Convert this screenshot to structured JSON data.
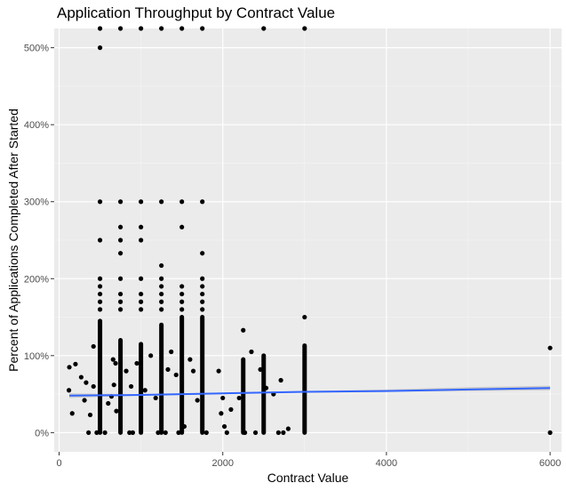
{
  "chart_data": {
    "type": "scatter",
    "title": "Application Throughput by Contract Value",
    "xlabel": "Contract Value",
    "ylabel": "Percent of Applications Completed After Started",
    "xlim": [
      -60,
      6140
    ],
    "ylim": [
      -0.25,
      5.25
    ],
    "x_ticks": [
      0,
      2000,
      4000,
      6000
    ],
    "x_tick_labels": [
      "0",
      "2000",
      "4000",
      "6000"
    ],
    "y_ticks": [
      0,
      1,
      2,
      3,
      4,
      5
    ],
    "y_tick_labels": [
      "0%",
      "100%",
      "200%",
      "300%",
      "400%",
      "500%"
    ],
    "grid": true,
    "background": "#ebebeb",
    "point_color": "#000000",
    "trend_color": "#3366ff",
    "band_color": "#bdbdbd",
    "columns": [
      {
        "x": 500,
        "from": 0,
        "to": 1.45
      },
      {
        "x": 750,
        "from": 0,
        "to": 1.2
      },
      {
        "x": 1000,
        "from": 0,
        "to": 1.15
      },
      {
        "x": 1250,
        "from": 0,
        "to": 1.4
      },
      {
        "x": 1500,
        "from": 0,
        "to": 1.5
      },
      {
        "x": 1750,
        "from": 0,
        "to": 1.5
      },
      {
        "x": 2250,
        "from": 0,
        "to": 0.95
      },
      {
        "x": 2500,
        "from": 0,
        "to": 1.0
      },
      {
        "x": 3000,
        "from": 0,
        "to": 1.13
      }
    ],
    "points": [
      [
        500,
        5.25
      ],
      [
        750,
        5.25
      ],
      [
        1000,
        5.25
      ],
      [
        1250,
        5.25
      ],
      [
        1500,
        5.25
      ],
      [
        1750,
        5.25
      ],
      [
        2500,
        5.25
      ],
      [
        3000,
        5.25
      ],
      [
        500,
        5.0
      ],
      [
        500,
        3.0
      ],
      [
        750,
        3.0
      ],
      [
        1000,
        3.0
      ],
      [
        1250,
        3.0
      ],
      [
        1500,
        3.0
      ],
      [
        1750,
        3.0
      ],
      [
        750,
        2.67
      ],
      [
        1000,
        2.67
      ],
      [
        1500,
        2.67
      ],
      [
        500,
        2.5
      ],
      [
        750,
        2.5
      ],
      [
        1000,
        2.5
      ],
      [
        750,
        2.33
      ],
      [
        1750,
        2.33
      ],
      [
        1250,
        2.17
      ],
      [
        500,
        2.0
      ],
      [
        750,
        2.0
      ],
      [
        1000,
        2.0
      ],
      [
        1250,
        2.0
      ],
      [
        1750,
        2.0
      ],
      [
        500,
        1.9
      ],
      [
        1250,
        1.9
      ],
      [
        1500,
        1.9
      ],
      [
        1750,
        1.9
      ],
      [
        500,
        1.8
      ],
      [
        750,
        1.8
      ],
      [
        1000,
        1.8
      ],
      [
        1250,
        1.8
      ],
      [
        1500,
        1.8
      ],
      [
        1750,
        1.8
      ],
      [
        500,
        1.7
      ],
      [
        750,
        1.7
      ],
      [
        1000,
        1.7
      ],
      [
        1250,
        1.7
      ],
      [
        1500,
        1.7
      ],
      [
        1750,
        1.7
      ],
      [
        500,
        1.6
      ],
      [
        750,
        1.6
      ],
      [
        1000,
        1.6
      ],
      [
        1250,
        1.6
      ],
      [
        1500,
        1.6
      ],
      [
        1750,
        1.6
      ],
      [
        2250,
        1.33
      ],
      [
        3000,
        1.5
      ],
      [
        125,
        0.85
      ],
      [
        200,
        0.89
      ],
      [
        160,
        0.25
      ],
      [
        120,
        0.55
      ],
      [
        270,
        0.72
      ],
      [
        310,
        0.42
      ],
      [
        330,
        0.65
      ],
      [
        360,
        0.0
      ],
      [
        380,
        0.23
      ],
      [
        420,
        1.12
      ],
      [
        420,
        0.6
      ],
      [
        460,
        0.0
      ],
      [
        560,
        0.0
      ],
      [
        600,
        0.38
      ],
      [
        640,
        0.47
      ],
      [
        660,
        0.95
      ],
      [
        670,
        0.62
      ],
      [
        690,
        0.9
      ],
      [
        700,
        0.28
      ],
      [
        820,
        0.8
      ],
      [
        860,
        0.0
      ],
      [
        880,
        0.6
      ],
      [
        900,
        0.0
      ],
      [
        950,
        0.9
      ],
      [
        1050,
        0.55
      ],
      [
        1120,
        1.0
      ],
      [
        1180,
        0.45
      ],
      [
        1210,
        0.0
      ],
      [
        1300,
        0.0
      ],
      [
        1330,
        0.82
      ],
      [
        1370,
        1.05
      ],
      [
        1430,
        0.75
      ],
      [
        1460,
        0.0
      ],
      [
        1530,
        0.08
      ],
      [
        1600,
        0.95
      ],
      [
        1640,
        0.8
      ],
      [
        1690,
        0.42
      ],
      [
        1800,
        0.0
      ],
      [
        1950,
        0.8
      ],
      [
        1980,
        0.25
      ],
      [
        2000,
        0.45
      ],
      [
        2020,
        0.08
      ],
      [
        2050,
        0.0
      ],
      [
        2100,
        0.3
      ],
      [
        2200,
        0.45
      ],
      [
        2270,
        0.0
      ],
      [
        2350,
        1.05
      ],
      [
        2400,
        0.0
      ],
      [
        2460,
        0.82
      ],
      [
        2530,
        0.58
      ],
      [
        2620,
        0.5
      ],
      [
        2680,
        0.0
      ],
      [
        2710,
        0.68
      ],
      [
        2740,
        0.0
      ],
      [
        2800,
        0.05
      ],
      [
        6000,
        1.1
      ],
      [
        6000,
        0.0
      ]
    ],
    "trend": {
      "x": [
        125,
        1000,
        2000,
        3000,
        4000,
        5000,
        6000
      ],
      "y": [
        0.48,
        0.49,
        0.51,
        0.53,
        0.54,
        0.56,
        0.58
      ]
    },
    "band": {
      "x": [
        125,
        1000,
        2000,
        3000,
        4000,
        5000,
        6000
      ],
      "lower": [
        0.45,
        0.48,
        0.5,
        0.52,
        0.53,
        0.54,
        0.55
      ],
      "upper": [
        0.51,
        0.5,
        0.52,
        0.54,
        0.56,
        0.59,
        0.61
      ]
    }
  }
}
